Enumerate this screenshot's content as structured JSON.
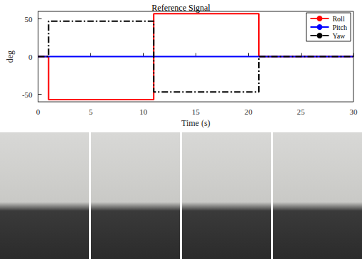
{
  "chart_data": {
    "type": "line",
    "title": "Reference Signal",
    "x_label": "Time (s)",
    "y_label": "deg",
    "x": [
      0,
      1,
      1,
      11,
      11,
      21,
      21,
      30
    ],
    "series": [
      {
        "name": "Roll",
        "color": "#ff0000",
        "line_style": "solid",
        "values": [
          0,
          0,
          -57,
          -57,
          57,
          57,
          0,
          0
        ]
      },
      {
        "name": "Pitch",
        "color": "#0000ff",
        "line_style": "solid",
        "values": [
          0,
          0,
          0,
          0,
          0,
          0,
          0,
          0
        ]
      },
      {
        "name": "Yaw",
        "color": "#000000",
        "line_style": "dashdot",
        "values": [
          0,
          0,
          47,
          47,
          -47,
          -47,
          0,
          0
        ]
      }
    ],
    "xlim": [
      0,
      30
    ],
    "xticks": [
      0,
      5,
      10,
      15,
      20,
      25,
      30
    ],
    "ylim": [
      -60,
      60
    ],
    "yticks": [
      -50,
      0,
      50
    ],
    "grid": false,
    "legend": "upper right"
  }
}
